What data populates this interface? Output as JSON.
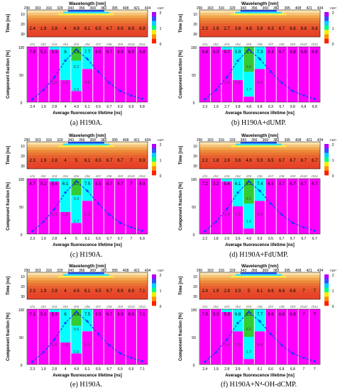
{
  "wavelengths": [
    "290",
    "303",
    "316",
    "329",
    "343",
    "356",
    "369",
    "382",
    "395",
    "408",
    "421",
    "434"
  ],
  "labels": {
    "wavelength": "Wavelength [nm]",
    "time": "Time [ns]",
    "fraction": "Component fraction [%]",
    "lifetime": "Average fluorescence lifetime [ns]",
    "time_ticks": [
      "10",
      "20",
      "30"
    ],
    "fraction_ticks": [
      "100",
      "50",
      "0"
    ],
    "colorbar_ticks": [
      "2",
      "1",
      "0"
    ],
    "colorbar_exp": "×10⁴",
    "channels": [
      "ch1",
      "ch2",
      "ch3",
      "ch4",
      "ch5",
      "ch6",
      "ch7",
      "ch8",
      "ch9",
      "ch10",
      "ch11"
    ]
  },
  "colors": {
    "magenta": "#ff00ff",
    "cyan": "#00ffff",
    "green": "#33cc33",
    "line": "#1a3cff"
  },
  "chart_data": [
    {
      "type": "bar",
      "caption": "(a) H190A.",
      "lifetimes": [
        "2.4",
        "1.9",
        "2.8",
        "4",
        "4.9",
        "6.1",
        "6.5",
        "6.7",
        "6.9",
        "6.9",
        "6.8"
      ],
      "stack": [
        [
          100,
          0,
          0
        ],
        [
          100,
          0,
          0
        ],
        [
          95,
          5,
          0
        ],
        [
          40,
          60,
          0
        ],
        [
          20,
          55,
          25
        ],
        [
          60,
          40,
          0
        ],
        [
          100,
          0,
          0
        ],
        [
          100,
          0,
          0
        ],
        [
          100,
          0,
          0
        ],
        [
          100,
          0,
          0
        ],
        [
          100,
          0,
          0
        ]
      ],
      "labels": [
        [
          "7.9"
        ],
        [
          "5.2"
        ],
        [
          "5.9",
          "1.6"
        ],
        [
          "6",
          "1.5"
        ],
        [
          "6.8",
          "6.2",
          "1.5"
        ],
        [
          "7.7",
          "4.6"
        ],
        [
          "6.5"
        ],
        [
          "6.7"
        ],
        [
          "6.9"
        ],
        [
          "6.9"
        ],
        [
          "6.8"
        ]
      ],
      "curve": [
        5,
        22,
        45,
        75,
        95,
        78,
        55,
        35,
        20,
        12,
        6
      ]
    },
    {
      "type": "bar",
      "caption": "(b) H190A+dUMP.",
      "lifetimes": [
        "2.3",
        "1.9",
        "2.7",
        "3.8",
        "4.8",
        "5.8",
        "6.3",
        "6.7",
        "6.8",
        "6.8",
        "6.8"
      ],
      "stack": [
        [
          100,
          0,
          0
        ],
        [
          100,
          0,
          0
        ],
        [
          95,
          5,
          0
        ],
        [
          40,
          60,
          0
        ],
        [
          10,
          45,
          45
        ],
        [
          60,
          40,
          0
        ],
        [
          100,
          0,
          0
        ],
        [
          100,
          0,
          0
        ],
        [
          100,
          0,
          0
        ],
        [
          100,
          0,
          0
        ],
        [
          100,
          0,
          0
        ]
      ],
      "labels": [
        [
          "6.6"
        ],
        [
          "5.3"
        ],
        [
          "5.7",
          "1.6"
        ],
        [
          "5.9",
          "1.6"
        ],
        [
          "6.3",
          "6.6",
          "1.7"
        ],
        [
          "7.3",
          "4.4"
        ],
        [
          "6.3"
        ],
        [
          "6.7"
        ],
        [
          "6.8"
        ],
        [
          "6.8"
        ],
        [
          "6.8"
        ]
      ],
      "curve": [
        5,
        22,
        45,
        75,
        95,
        78,
        55,
        35,
        20,
        12,
        6
      ]
    },
    {
      "type": "bar",
      "caption": "(c) H190A.",
      "lifetimes": [
        "2.3",
        "1.9",
        "2.8",
        "4",
        "5",
        "6.1",
        "6.5",
        "6.7",
        "6.7",
        "7",
        "6.9"
      ],
      "stack": [
        [
          100,
          0,
          0
        ],
        [
          100,
          0,
          0
        ],
        [
          95,
          5,
          0
        ],
        [
          40,
          60,
          0
        ],
        [
          20,
          50,
          30
        ],
        [
          60,
          40,
          0
        ],
        [
          100,
          0,
          0
        ],
        [
          100,
          0,
          0
        ],
        [
          100,
          0,
          0
        ],
        [
          100,
          0,
          0
        ],
        [
          100,
          0,
          0
        ]
      ],
      "labels": [
        [
          "6.7"
        ],
        [
          "5.2"
        ],
        [
          "5.6",
          "1.5"
        ],
        [
          "6.1",
          "1.5"
        ],
        [
          "6.7",
          "5.9",
          "1.7"
        ],
        [
          "7.5",
          "5.1"
        ],
        [
          "6.5"
        ],
        [
          "6.7"
        ],
        [
          "6.7"
        ],
        [
          "7"
        ],
        [
          "6.9"
        ]
      ],
      "curve": [
        5,
        22,
        45,
        75,
        95,
        78,
        55,
        35,
        20,
        12,
        6
      ]
    },
    {
      "type": "bar",
      "caption": "(d) H190A+FdUMP.",
      "lifetimes": [
        "2.2",
        "1.8",
        "2.6",
        "3.6",
        "4.6",
        "5.9",
        "6.5",
        "6.7",
        "6.7",
        "6.7",
        "6.7"
      ],
      "stack": [
        [
          100,
          0,
          0
        ],
        [
          100,
          0,
          0
        ],
        [
          95,
          5,
          0
        ],
        [
          50,
          50,
          0
        ],
        [
          10,
          45,
          45
        ],
        [
          60,
          40,
          0
        ],
        [
          100,
          0,
          0
        ],
        [
          100,
          0,
          0
        ],
        [
          100,
          0,
          0
        ],
        [
          100,
          0,
          0
        ],
        [
          100,
          0,
          0
        ]
      ],
      "labels": [
        [
          "7.2"
        ],
        [
          "5.2"
        ],
        [
          "5.6",
          "1.4"
        ],
        [
          "6.1",
          "1.5"
        ],
        [
          "6.3",
          "6.1",
          "1.6"
        ],
        [
          "7.4",
          "4.2"
        ],
        [
          "6.5"
        ],
        [
          "6.7"
        ],
        [
          "6.7"
        ],
        [
          "6.7"
        ],
        [
          "6.7"
        ]
      ],
      "curve": [
        5,
        22,
        45,
        75,
        95,
        78,
        55,
        35,
        20,
        12,
        6
      ]
    },
    {
      "type": "bar",
      "caption": "(e) H190A.",
      "lifetimes": [
        "2.3",
        "1.9",
        "2.8",
        "4",
        "4.9",
        "6.1",
        "6.5",
        "6.7",
        "6.9",
        "6.9",
        "7.1"
      ],
      "stack": [
        [
          100,
          0,
          0
        ],
        [
          100,
          0,
          0
        ],
        [
          95,
          5,
          0
        ],
        [
          40,
          60,
          0
        ],
        [
          20,
          50,
          30
        ],
        [
          60,
          40,
          0
        ],
        [
          100,
          0,
          0
        ],
        [
          100,
          0,
          0
        ],
        [
          100,
          0,
          0
        ],
        [
          100,
          0,
          0
        ],
        [
          100,
          0,
          0
        ]
      ],
      "labels": [
        [
          "7.1"
        ],
        [
          "5.3"
        ],
        [
          "5.9",
          "1.5"
        ],
        [
          "6",
          "1.5"
        ],
        [
          "6.8",
          "5.6",
          "1.5"
        ],
        [
          "7.5",
          "5.1"
        ],
        [
          "6.5"
        ],
        [
          "6.7"
        ],
        [
          "6.9"
        ],
        [
          "6.9"
        ],
        [
          "7.1"
        ]
      ],
      "curve": [
        5,
        22,
        45,
        75,
        95,
        78,
        55,
        35,
        20,
        12,
        6
      ]
    },
    {
      "type": "bar",
      "caption": "(f) H190A+N⁴-OH-dCMP.",
      "lifetimes": [
        "2.4",
        "1.9",
        "2.8",
        "3.9",
        "5",
        "6.1",
        "6.6",
        "6.8",
        "6.8",
        "7",
        "7"
      ],
      "stack": [
        [
          100,
          0,
          0
        ],
        [
          100,
          0,
          0
        ],
        [
          95,
          5,
          0
        ],
        [
          60,
          40,
          0
        ],
        [
          10,
          40,
          50
        ],
        [
          60,
          40,
          0
        ],
        [
          100,
          0,
          0
        ],
        [
          100,
          0,
          0
        ],
        [
          100,
          0,
          0
        ],
        [
          100,
          0,
          0
        ],
        [
          100,
          0,
          0
        ]
      ],
      "labels": [
        [
          "7.9"
        ],
        [
          "5.3"
        ],
        [
          "5.9",
          "1.4"
        ],
        [
          "6.8",
          "1.5"
        ],
        [
          "6.2",
          "6.5",
          "1.7"
        ],
        [
          "7.7",
          "5.6"
        ],
        [
          "6.6"
        ],
        [
          "6.8"
        ],
        [
          "6.8"
        ],
        [
          "7"
        ],
        [
          "7"
        ]
      ],
      "curve": [
        5,
        22,
        45,
        75,
        95,
        78,
        55,
        35,
        20,
        12,
        6
      ]
    }
  ]
}
